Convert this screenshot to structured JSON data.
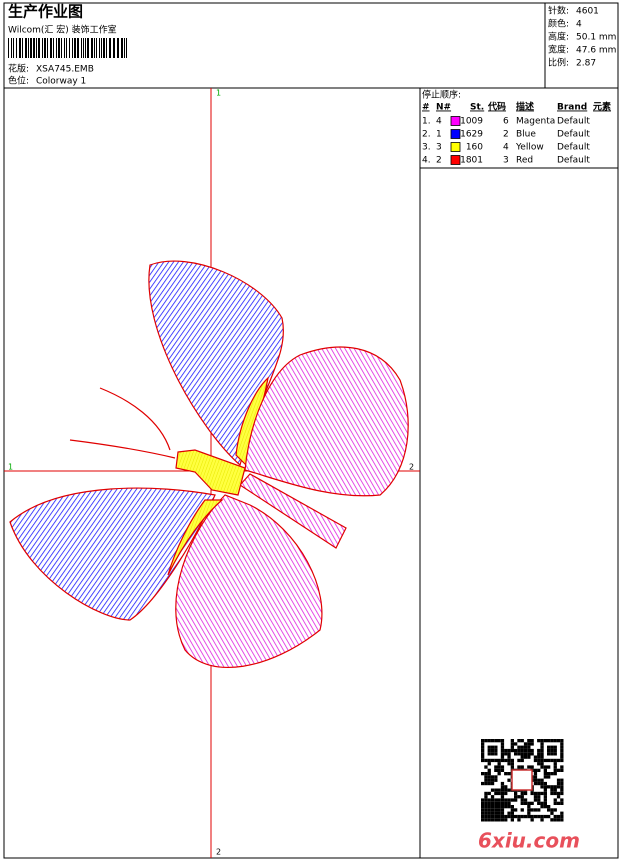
{
  "header": {
    "title": "生产作业图",
    "company": "Wilcom(汇 宏) 装饰工作室",
    "design_label": "花版:",
    "design": "XSA745.EMB",
    "colorway_label": "色位:",
    "colorway": "Colorway 1"
  },
  "stats": [
    {
      "label": "针数:",
      "value": "4601"
    },
    {
      "label": "颜色:",
      "value": "4"
    },
    {
      "label": "高度:",
      "value": "50.1 mm"
    },
    {
      "label": "宽度:",
      "value": "47.6 mm"
    },
    {
      "label": "比例:",
      "value": "2.87"
    }
  ],
  "stop_sequence": {
    "title": "停止顺序:",
    "columns": [
      "#",
      "N#",
      "St.",
      "代码",
      "描述",
      "Brand",
      "元素"
    ],
    "rows": [
      {
        "index": "1.",
        "n": "4",
        "color": "#ff00ff",
        "stitches": 1009,
        "code": "6",
        "description": "Magenta",
        "brand": "Default"
      },
      {
        "index": "2.",
        "n": "1",
        "color": "#0000ff",
        "stitches": 1629,
        "code": "2",
        "description": "Blue",
        "brand": "Default"
      },
      {
        "index": "3.",
        "n": "3",
        "color": "#ffff00",
        "stitches": 160,
        "code": "4",
        "description": "Yellow",
        "brand": "Default"
      },
      {
        "index": "4.",
        "n": "2",
        "color": "#ff0000",
        "stitches": 1801,
        "code": "3",
        "description": "Red",
        "brand": "Default"
      }
    ]
  },
  "axis_labels": {
    "top": "1",
    "bottom": "2",
    "left": "1",
    "right": "2"
  },
  "watermark": "6xiu.com"
}
